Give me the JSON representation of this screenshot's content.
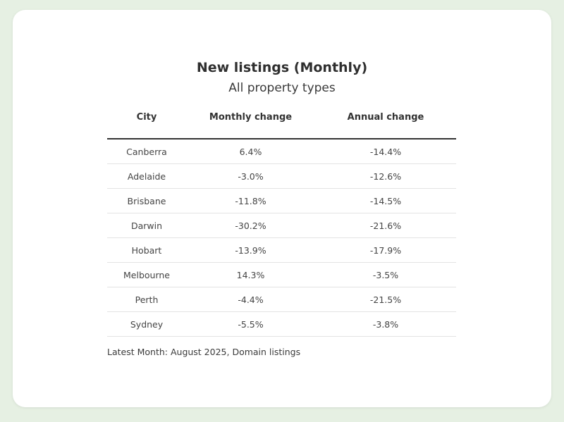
{
  "title": "New listings (Monthly)",
  "subtitle": "All property types",
  "footnote": "Latest Month: August 2025, Domain listings",
  "colors": {
    "background": "#e6f0e3",
    "card": "#ffffff",
    "text": "#333333"
  },
  "chart_data": {
    "type": "table",
    "title": "New listings (Monthly)",
    "subtitle": "All property types",
    "columns": [
      "City",
      "Monthly change",
      "Annual change"
    ],
    "rows": [
      [
        "Canberra",
        "6.4%",
        "-14.4%"
      ],
      [
        "Adelaide",
        "-3.0%",
        "-12.6%"
      ],
      [
        "Brisbane",
        "-11.8%",
        "-14.5%"
      ],
      [
        "Darwin",
        "-30.2%",
        "-21.6%"
      ],
      [
        "Hobart",
        "-13.9%",
        "-17.9%"
      ],
      [
        "Melbourne",
        "14.3%",
        "-3.5%"
      ],
      [
        "Perth",
        "-4.4%",
        "-21.5%"
      ],
      [
        "Sydney",
        "-5.5%",
        "-3.8%"
      ]
    ]
  }
}
